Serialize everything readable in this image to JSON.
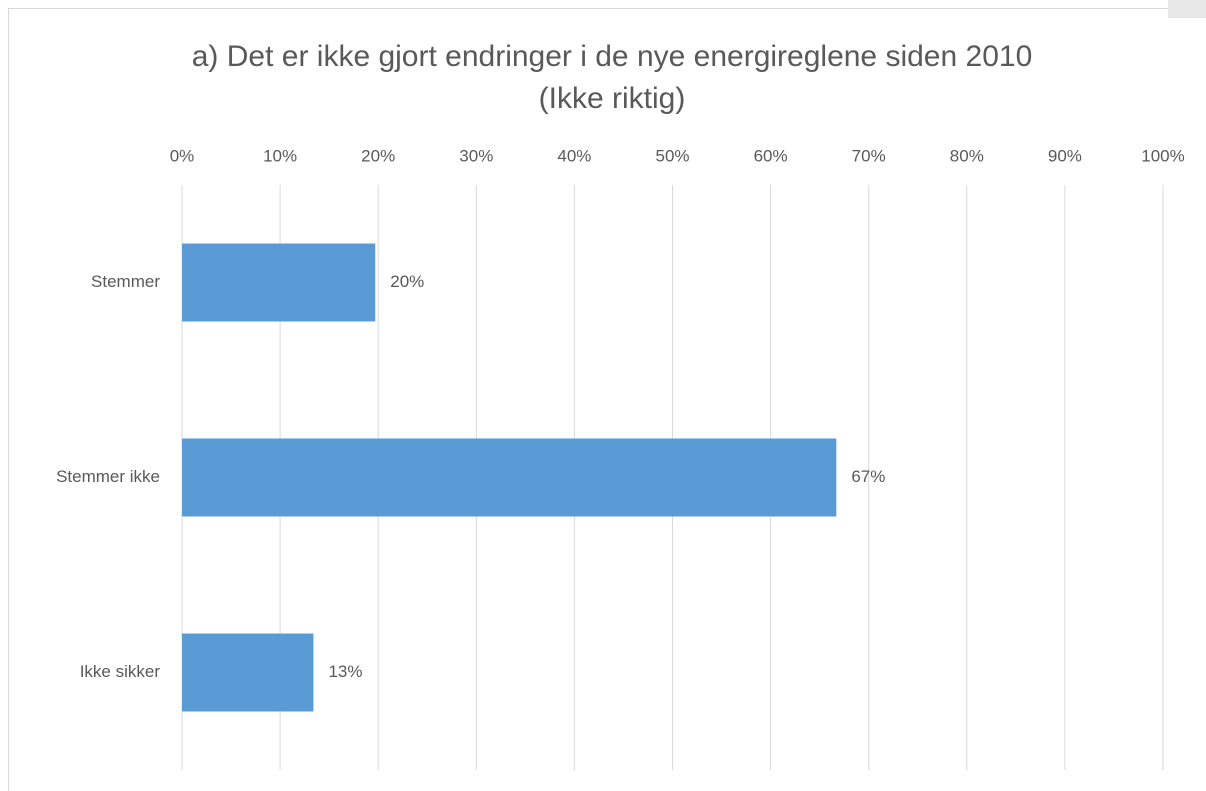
{
  "chart_data": {
    "type": "hbar",
    "title": "a) Det er ikke gjort endringer i de nye energireglene siden 2010 (Ikke riktig)",
    "categories": [
      "Stemmer",
      "Stemmer ikke",
      "Ikke sikker"
    ],
    "values": [
      19.7,
      66.7,
      13.4
    ],
    "value_labels": [
      "20%",
      "67%",
      "13%"
    ],
    "color": "#5b9bd5",
    "xlim": [
      0,
      100
    ],
    "xticks": [
      {
        "value": 0,
        "label": "0%"
      },
      {
        "value": 10,
        "label": "10%"
      },
      {
        "value": 20,
        "label": "20%"
      },
      {
        "value": 30,
        "label": "30%"
      },
      {
        "value": 40,
        "label": "40%"
      },
      {
        "value": 50,
        "label": "50%"
      },
      {
        "value": 60,
        "label": "60%"
      },
      {
        "value": 70,
        "label": "70%"
      },
      {
        "value": 80,
        "label": "80%"
      },
      {
        "value": 90,
        "label": "90%"
      },
      {
        "value": 100,
        "label": "100%"
      }
    ],
    "grid": true
  }
}
